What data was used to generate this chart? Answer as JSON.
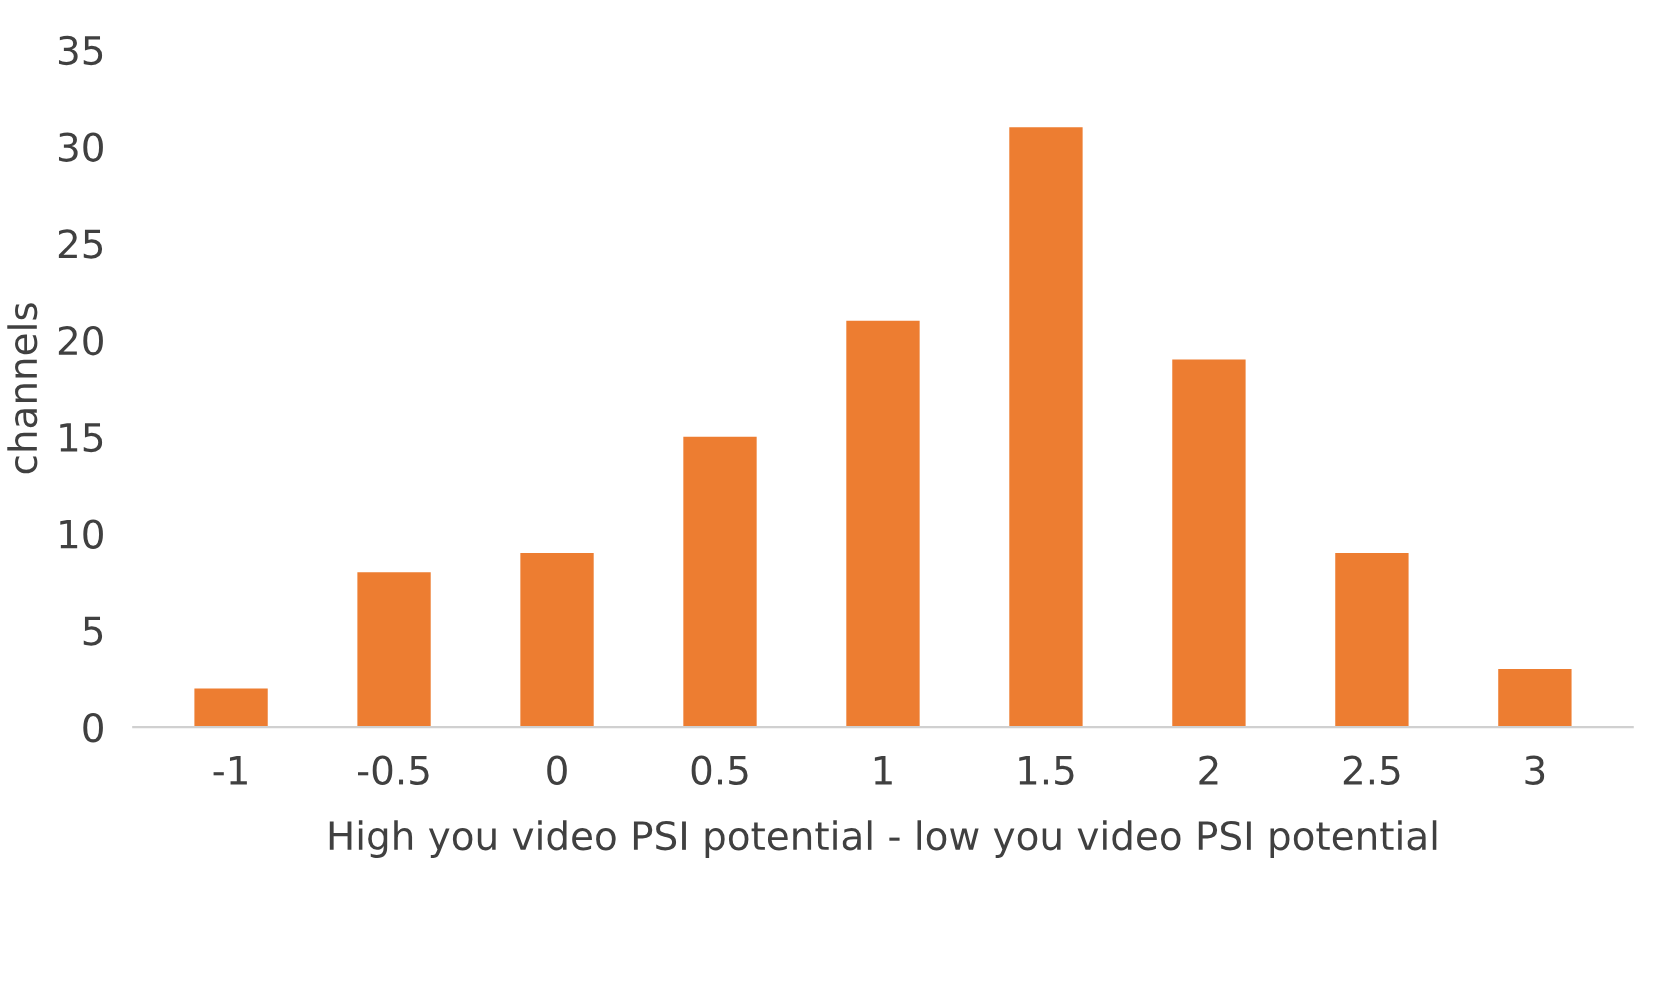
{
  "chart_data": {
    "type": "bar",
    "categories": [
      "-1",
      "-0.5",
      "0",
      "0.5",
      "1",
      "1.5",
      "2",
      "2.5",
      "3"
    ],
    "values": [
      2,
      8,
      9,
      15,
      21,
      31,
      19,
      9,
      3
    ],
    "color": "#ed7d31",
    "xlabel": "High you video PSI potential - low you video PSI potential",
    "ylabel": "channels",
    "ylim": [
      0,
      35
    ],
    "yticks": [
      0,
      5,
      10,
      15,
      20,
      25,
      30,
      35
    ],
    "grid": false,
    "legend": false
  }
}
